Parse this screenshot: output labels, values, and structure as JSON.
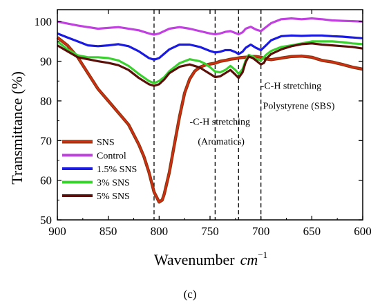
{
  "chart_data": {
    "type": "line",
    "xlabel": "Wavenumber",
    "xlabel_unit": "cm",
    "xlabel_unit_exp": "−1",
    "ylabel": "Transmittance (%)",
    "xlim": [
      900,
      600
    ],
    "ylim": [
      50,
      103
    ],
    "x_inverted": true,
    "xticks": [
      900,
      850,
      800,
      750,
      700,
      650,
      600
    ],
    "yticks": [
      50,
      60,
      70,
      80,
      90,
      100
    ],
    "grid": false,
    "legend_position": "bottom-left",
    "panel_label": "(c)",
    "reference_lines_x": [
      805,
      745,
      722,
      700
    ],
    "annotations": [
      {
        "text": "-C-H stretching",
        "x": 770,
        "y": 74
      },
      {
        "text": "(Aromatics)",
        "x": 762,
        "y": 69
      },
      {
        "text": "-C-H stretching",
        "x": 700,
        "y": 83
      },
      {
        "text": "Polystyrene (SBS)",
        "x": 698,
        "y": 78
      }
    ],
    "series": [
      {
        "name": "SNS",
        "color": "#d62c10",
        "outline": "#7a3a12",
        "x": [
          900,
          890,
          880,
          870,
          860,
          850,
          840,
          830,
          820,
          815,
          810,
          805,
          800,
          797,
          795,
          790,
          785,
          780,
          775,
          770,
          765,
          760,
          755,
          750,
          745,
          740,
          735,
          730,
          725,
          720,
          715,
          710,
          705,
          700,
          695,
          690,
          680,
          670,
          660,
          650,
          640,
          630,
          620,
          610,
          600
        ],
        "y": [
          96,
          94,
          91,
          87,
          83,
          80,
          77,
          74,
          69,
          66,
          62,
          57,
          54.5,
          55,
          56.5,
          62,
          69,
          76,
          82,
          85.5,
          87.5,
          88.5,
          89,
          89.3,
          89.5,
          90,
          90.2,
          90.5,
          90.7,
          90.9,
          91,
          91.2,
          91.2,
          91,
          90.6,
          90.4,
          90.8,
          91.2,
          91.3,
          91,
          90.2,
          89.8,
          89.2,
          88.5,
          88
        ]
      },
      {
        "name": "Control",
        "color": "#c040e0",
        "x": [
          900,
          880,
          860,
          840,
          820,
          810,
          805,
          800,
          790,
          780,
          770,
          760,
          750,
          745,
          740,
          735,
          730,
          725,
          722,
          718,
          715,
          710,
          705,
          700,
          695,
          690,
          680,
          670,
          660,
          650,
          640,
          630,
          620,
          610,
          600
        ],
        "y": [
          100,
          99,
          98.2,
          98.6,
          97.8,
          97,
          96.7,
          97,
          98.2,
          98.6,
          98.2,
          97.6,
          97,
          96.8,
          97,
          97.4,
          97.6,
          97.1,
          96.8,
          97.3,
          98.2,
          98.7,
          98,
          97.6,
          98.6,
          99.6,
          100.6,
          100.8,
          100.6,
          100.8,
          100.6,
          100.3,
          100.2,
          100.1,
          100
        ]
      },
      {
        "name": "1.5% SNS",
        "color": "#1a1ae0",
        "x": [
          900,
          890,
          880,
          870,
          860,
          850,
          840,
          830,
          820,
          810,
          805,
          800,
          790,
          780,
          770,
          760,
          750,
          745,
          740,
          735,
          730,
          725,
          722,
          718,
          715,
          710,
          705,
          700,
          695,
          690,
          680,
          670,
          660,
          650,
          640,
          630,
          620,
          610,
          600
        ],
        "y": [
          97,
          96,
          95,
          94,
          93.8,
          94,
          94.3,
          93.8,
          92.5,
          90.8,
          90.4,
          90.8,
          93,
          94.2,
          94.2,
          93.6,
          92.6,
          92.2,
          92.4,
          92.8,
          92.8,
          92.3,
          91.8,
          92.4,
          93.4,
          94.2,
          93.4,
          92.8,
          94,
          95.3,
          96.3,
          96.5,
          96.4,
          96.5,
          96.5,
          96.3,
          96.2,
          96,
          95.8
        ]
      },
      {
        "name": "3% SNS",
        "color": "#3ad030",
        "x": [
          900,
          890,
          880,
          870,
          860,
          850,
          840,
          830,
          820,
          810,
          805,
          800,
          795,
          790,
          780,
          770,
          760,
          755,
          750,
          745,
          740,
          735,
          730,
          725,
          722,
          718,
          715,
          712,
          708,
          705,
          700,
          695,
          690,
          680,
          670,
          660,
          650,
          640,
          630,
          620,
          610,
          600
        ],
        "y": [
          95,
          93,
          91.5,
          91,
          91,
          90.8,
          90.2,
          88.8,
          86.8,
          85,
          84.5,
          85,
          86,
          87.5,
          89.5,
          90.5,
          90,
          89.4,
          88.5,
          87.4,
          87.2,
          87.8,
          88.8,
          87.8,
          86.8,
          88,
          90.2,
          91.6,
          91.2,
          90.6,
          90.2,
          91.6,
          92.6,
          93.6,
          94,
          94.5,
          95,
          95,
          95,
          94.8,
          94.5,
          94.3
        ]
      },
      {
        "name": "5% SNS",
        "color": "#5a1008",
        "x": [
          900,
          890,
          880,
          870,
          860,
          850,
          840,
          830,
          820,
          810,
          805,
          800,
          795,
          790,
          780,
          770,
          760,
          755,
          750,
          745,
          740,
          735,
          730,
          725,
          722,
          718,
          715,
          712,
          708,
          705,
          700,
          697,
          695,
          690,
          680,
          670,
          660,
          650,
          640,
          630,
          620,
          610,
          600
        ],
        "y": [
          94,
          92.5,
          91,
          90.5,
          90,
          89.6,
          89,
          87.8,
          85.8,
          84.2,
          83.8,
          84.2,
          85.4,
          87,
          88.6,
          89.2,
          88.4,
          87.6,
          86.8,
          86,
          86.2,
          87,
          87.8,
          86.6,
          85.8,
          87.2,
          89.8,
          91.2,
          90.8,
          90.2,
          89.2,
          89.6,
          90.6,
          91.8,
          93,
          93.8,
          94.3,
          94.5,
          94.2,
          94,
          93.8,
          93.6,
          93.2
        ]
      }
    ]
  }
}
